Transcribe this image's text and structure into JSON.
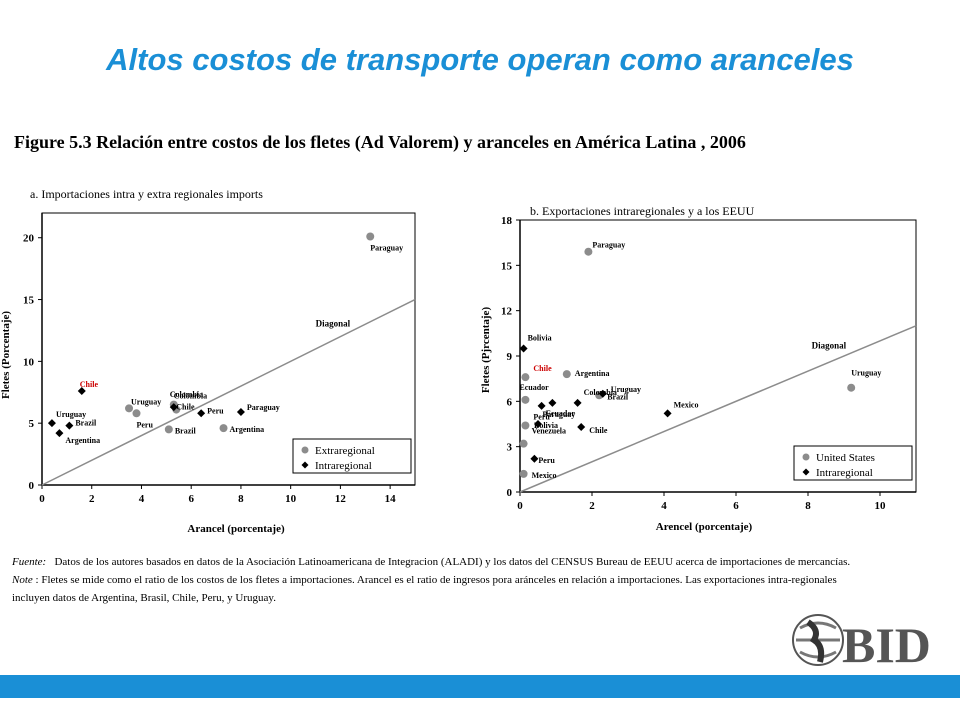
{
  "slide_title": "Altos costos de transporte operan como aranceles",
  "figure_title": "Figure 5.3 Relación entre costos de los fletes (Ad Valorem) y aranceles en América Latina , 2006",
  "source_note": {
    "fuente_label": "Fuente:",
    "fuente_text": "Datos de los autores basados en datos de la Asociación Latinoamericana de Integracion (ALADI)  y los datos del CENSUS Bureau de EEUU acerca de importaciones de mercancías.",
    "note_label": "Note",
    "note_text": ": Fletes se mide como el ratio de los costos de los fletes a importaciones. Arancel  es el  ratio de ingresos pora aránceles en relación a importaciones.   Las exportaciones intra-regionales",
    "note_text2": "incluyen datos de Argentina, Brasil, Chile, Peru,   y Uruguay."
  },
  "logo_text": "BID",
  "colors": {
    "title": "#1a8fd6",
    "bar": "#1a8fd6",
    "grey_marker": "#8c8c8c",
    "black_marker": "#000000",
    "chile_label": "#cc0000"
  },
  "chart_data": [
    {
      "type": "scatter",
      "title": "a. Importaciones intra y extra regionales imports",
      "xlabel": "Arancel  (porcentaje)",
      "ylabel": "Fletes (Porcentaje)",
      "xlim": [
        0,
        15
      ],
      "ylim": [
        0,
        22
      ],
      "xticks": [
        "0",
        "2",
        "4",
        "6",
        "8",
        "10",
        "12",
        "14"
      ],
      "yticks": [
        "0",
        "5",
        "10",
        "15",
        "20"
      ],
      "grid": false,
      "legend_position": "bottom-right",
      "diagonal_label": "Diagonal",
      "series": [
        {
          "name": "Extraregional",
          "marker": "circle",
          "color": "#8c8c8c",
          "points": [
            {
              "label": "Paraguay",
              "x": 13.2,
              "y": 20.1
            },
            {
              "label": "Uruguay",
              "x": 3.5,
              "y": 6.2
            },
            {
              "label": "Peru",
              "x": 3.8,
              "y": 5.8
            },
            {
              "label": "Colombia",
              "x": 5.3,
              "y": 6.5
            },
            {
              "label": "Chile",
              "x": 5.4,
              "y": 6.1
            },
            {
              "label": "Brazil",
              "x": 5.1,
              "y": 4.5
            },
            {
              "label": "Argentina",
              "x": 7.3,
              "y": 4.6
            }
          ]
        },
        {
          "name": "Intraregional",
          "marker": "diamond",
          "color": "#000000",
          "points": [
            {
              "label": "Chile",
              "x": 1.6,
              "y": 7.6
            },
            {
              "label": "Uruguay",
              "x": 0.4,
              "y": 5.0
            },
            {
              "label": "Brazil",
              "x": 1.1,
              "y": 4.8
            },
            {
              "label": "Argentina",
              "x": 0.7,
              "y": 4.2
            },
            {
              "label": "Colombia",
              "x": 5.3,
              "y": 6.3
            },
            {
              "label": "Peru",
              "x": 6.4,
              "y": 5.8
            },
            {
              "label": "Paraguay",
              "x": 8.0,
              "y": 5.9
            }
          ]
        }
      ]
    },
    {
      "type": "scatter",
      "title": "b. Exportaciones intraregionales y a los EEUU",
      "xlabel": "Arencel (porcentaje)",
      "ylabel": "Fletes (Pjrcentaje)",
      "xlim": [
        0,
        11
      ],
      "ylim": [
        0,
        18
      ],
      "xticks": [
        "0",
        "2",
        "4",
        "6",
        "8",
        "10"
      ],
      "yticks": [
        "0",
        "3",
        "6",
        "9",
        "12",
        "15",
        "18"
      ],
      "grid": false,
      "legend_position": "bottom-right",
      "diagonal_label": "Diagonal",
      "series": [
        {
          "name": "United States",
          "marker": "circle",
          "color": "#8c8c8c",
          "points": [
            {
              "label": "Paraguay",
              "x": 1.9,
              "y": 15.9
            },
            {
              "label": "Chile",
              "x": 0.15,
              "y": 7.6
            },
            {
              "label": "Argentina",
              "x": 1.3,
              "y": 7.8
            },
            {
              "label": "Ecuador",
              "x": 0.15,
              "y": 6.1
            },
            {
              "label": "Brazil",
              "x": 2.2,
              "y": 6.4
            },
            {
              "label": "Peru",
              "x": 0.15,
              "y": 4.4
            },
            {
              "label": "Venezuela",
              "x": 0.1,
              "y": 3.2
            },
            {
              "label": "Mexico",
              "x": 0.1,
              "y": 1.2
            },
            {
              "label": "Uruguay",
              "x": 9.2,
              "y": 6.9
            }
          ]
        },
        {
          "name": "Intraregional",
          "marker": "diamond",
          "color": "#000000",
          "points": [
            {
              "label": "Bolivia",
              "x": 0.1,
              "y": 9.5
            },
            {
              "label": "Uruguay",
              "x": 2.3,
              "y": 6.5
            },
            {
              "label": "Ecuador",
              "x": 0.6,
              "y": 5.7
            },
            {
              "label": "Colombia",
              "x": 1.6,
              "y": 5.9
            },
            {
              "label": "Paraguay",
              "x": 0.9,
              "y": 5.9
            },
            {
              "label": "Bolivia",
              "x": 0.5,
              "y": 4.5
            },
            {
              "label": "Chile",
              "x": 1.7,
              "y": 4.3
            },
            {
              "label": "Peru",
              "x": 0.4,
              "y": 2.2
            },
            {
              "label": "Mexico",
              "x": 4.1,
              "y": 5.2
            }
          ]
        }
      ]
    }
  ]
}
